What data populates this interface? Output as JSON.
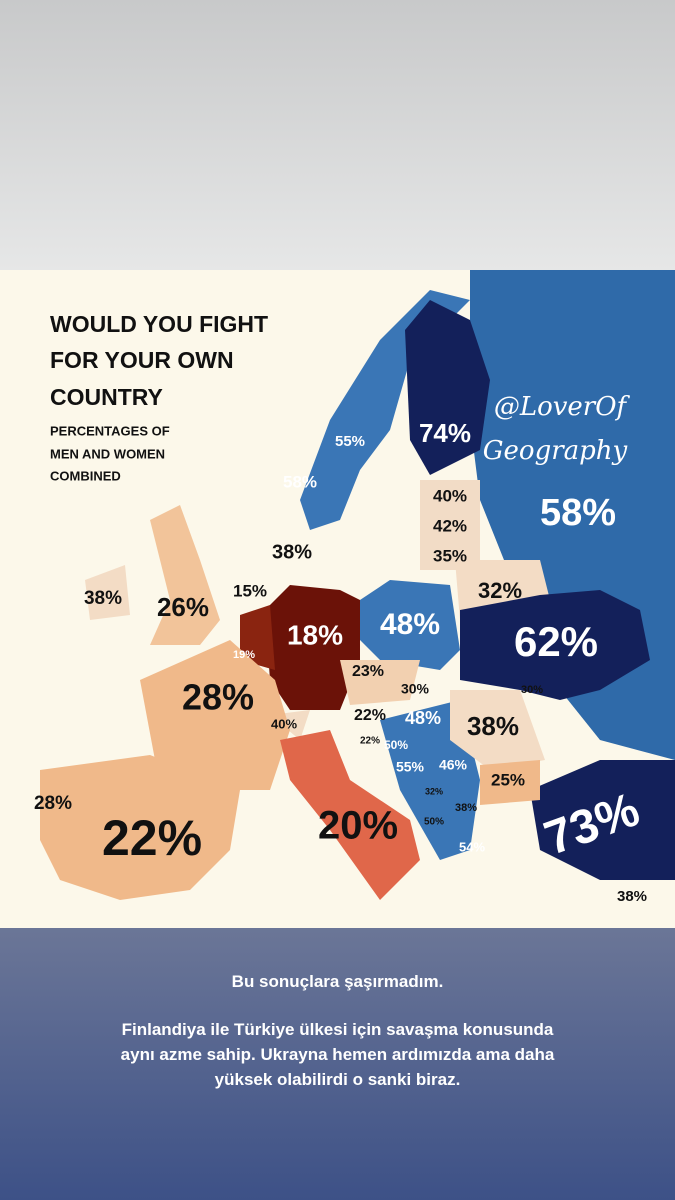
{
  "map": {
    "title": [
      "WOULD YOU FIGHT",
      "FOR YOUR OWN",
      "COUNTRY"
    ],
    "subtitle": [
      "PERCENTAGES OF",
      "MEN AND WOMEN",
      "COMBINED"
    ],
    "watermark": [
      "@LoverOf",
      "Geography"
    ],
    "labels": [
      "74%",
      "55%",
      "58%",
      "58%",
      "40%",
      "42%",
      "35%",
      "38%",
      "32%",
      "38%",
      "26%",
      "15%",
      "18%",
      "48%",
      "62%",
      "19%",
      "23%",
      "30%",
      "30%",
      "28%",
      "22%",
      "48%",
      "38%",
      "40%",
      "22%",
      "50%",
      "55%",
      "46%",
      "25%",
      "32%",
      "38%",
      "28%",
      "50%",
      "20%",
      "22%",
      "73%",
      "54%",
      "38%"
    ]
  },
  "caption": {
    "lines": [
      "Bu sonuçlara şaşırmadım.",
      "Finlandiya ile Türkiye ülkesi için savaşma konusunda",
      "aynı azme sahip. Ukrayna hemen ardımızda ama daha",
      "yüksek olabilirdi o sanki biraz."
    ]
  }
}
